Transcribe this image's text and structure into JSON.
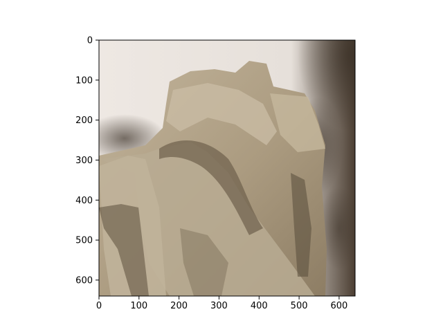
{
  "figure": {
    "background": "#ffffff",
    "image_subject": "crumpled brown paper towel on a light surface",
    "x_ticks": [
      "0",
      "100",
      "200",
      "300",
      "400",
      "500",
      "600"
    ],
    "y_ticks": [
      "0",
      "100",
      "200",
      "300",
      "400",
      "500",
      "600"
    ],
    "x_range": [
      0,
      640
    ],
    "y_range": [
      640,
      0
    ],
    "colors": {
      "background_surface": "#e8e2dc",
      "paper": "#b6a78e",
      "shadow": "#4a3f33",
      "axes": "#000000"
    }
  }
}
